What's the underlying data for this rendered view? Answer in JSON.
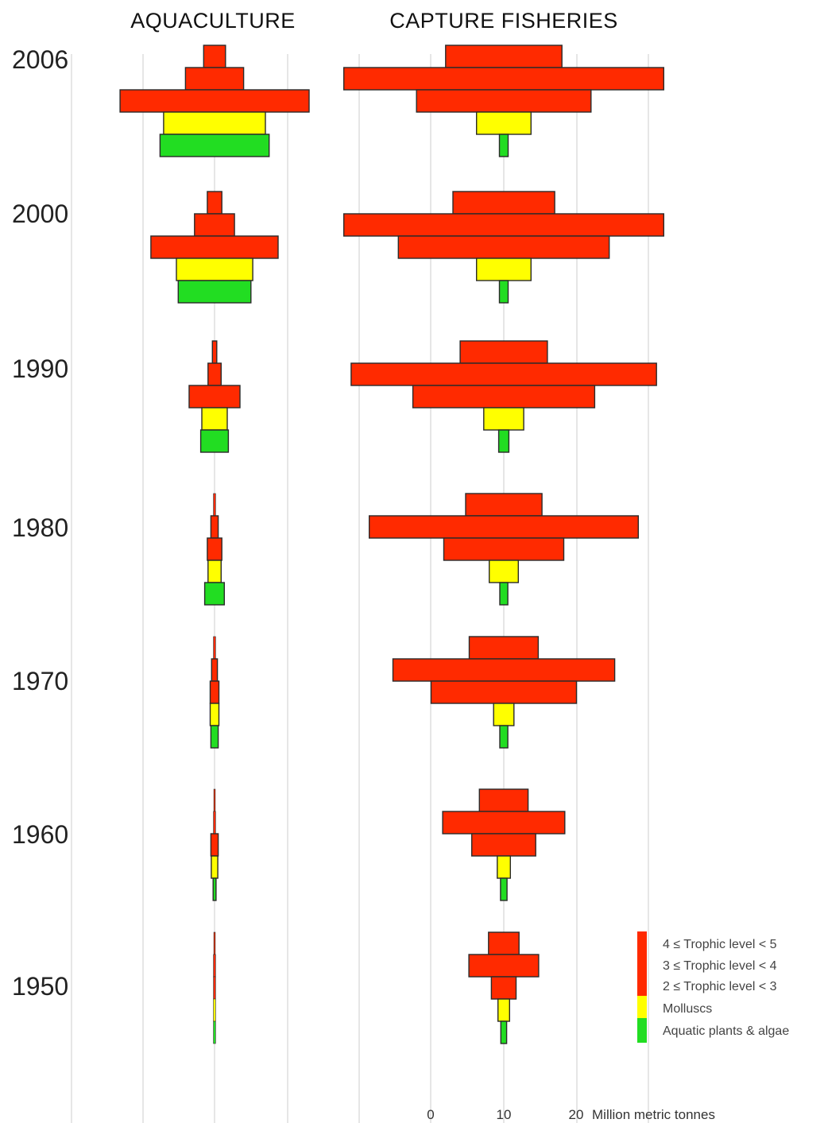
{
  "panels": {
    "aquaculture_title": "AQUACULTURE",
    "capture_title": "CAPTURE FISHERIES"
  },
  "axis": {
    "ticks": [
      "0",
      "10",
      "20"
    ],
    "unit_label": "Million metric tonnes"
  },
  "colors": {
    "trophic": "#ff2a00",
    "molluscs": "#ffff00",
    "plants": "#22dd22",
    "outline": "#2a2a2a"
  },
  "chart_data": {
    "type": "bar",
    "description_type": "population-pyramid style stacked symmetric bars",
    "xlabel": "Million metric tonnes",
    "categories": [
      "4 ≤ Trophic level < 5",
      "3 ≤ Trophic level < 4",
      "2 ≤ Trophic level < 3",
      "Molluscs",
      "Aquatic plants & algae"
    ],
    "years": [
      "2006",
      "2000",
      "1990",
      "1980",
      "1970",
      "1960",
      "1950"
    ],
    "aquaculture": [
      {
        "year": "2006",
        "values": [
          3,
          8,
          26,
          14,
          15
        ]
      },
      {
        "year": "2000",
        "values": [
          2,
          5.5,
          17.5,
          10.5,
          10
        ]
      },
      {
        "year": "1990",
        "values": [
          0.6,
          1.8,
          7,
          3.5,
          3.8
        ]
      },
      {
        "year": "1980",
        "values": [
          0.3,
          1,
          2,
          1.8,
          2.7
        ]
      },
      {
        "year": "1970",
        "values": [
          0.3,
          0.8,
          1.2,
          1.2,
          1
        ]
      },
      {
        "year": "1960",
        "values": [
          0.2,
          0.3,
          1,
          0.9,
          0.4
        ]
      },
      {
        "year": "1950",
        "values": [
          0.2,
          0.3,
          0.3,
          0.3,
          0.3
        ]
      }
    ],
    "capture_fisheries": [
      {
        "year": "2006",
        "values": [
          16,
          44,
          24,
          7.5,
          1.2
        ]
      },
      {
        "year": "2000",
        "values": [
          14,
          44,
          29,
          7.5,
          1.2
        ]
      },
      {
        "year": "1990",
        "values": [
          12,
          42,
          25,
          5.5,
          1.4
        ]
      },
      {
        "year": "1980",
        "values": [
          10.5,
          37,
          16.5,
          4,
          1.1
        ]
      },
      {
        "year": "1970",
        "values": [
          9.5,
          30.5,
          20,
          2.8,
          1.1
        ]
      },
      {
        "year": "1960",
        "values": [
          6.7,
          16.8,
          8.8,
          1.8,
          0.9
        ]
      },
      {
        "year": "1950",
        "values": [
          4.2,
          9.6,
          3.4,
          1.6,
          0.8
        ]
      }
    ]
  }
}
